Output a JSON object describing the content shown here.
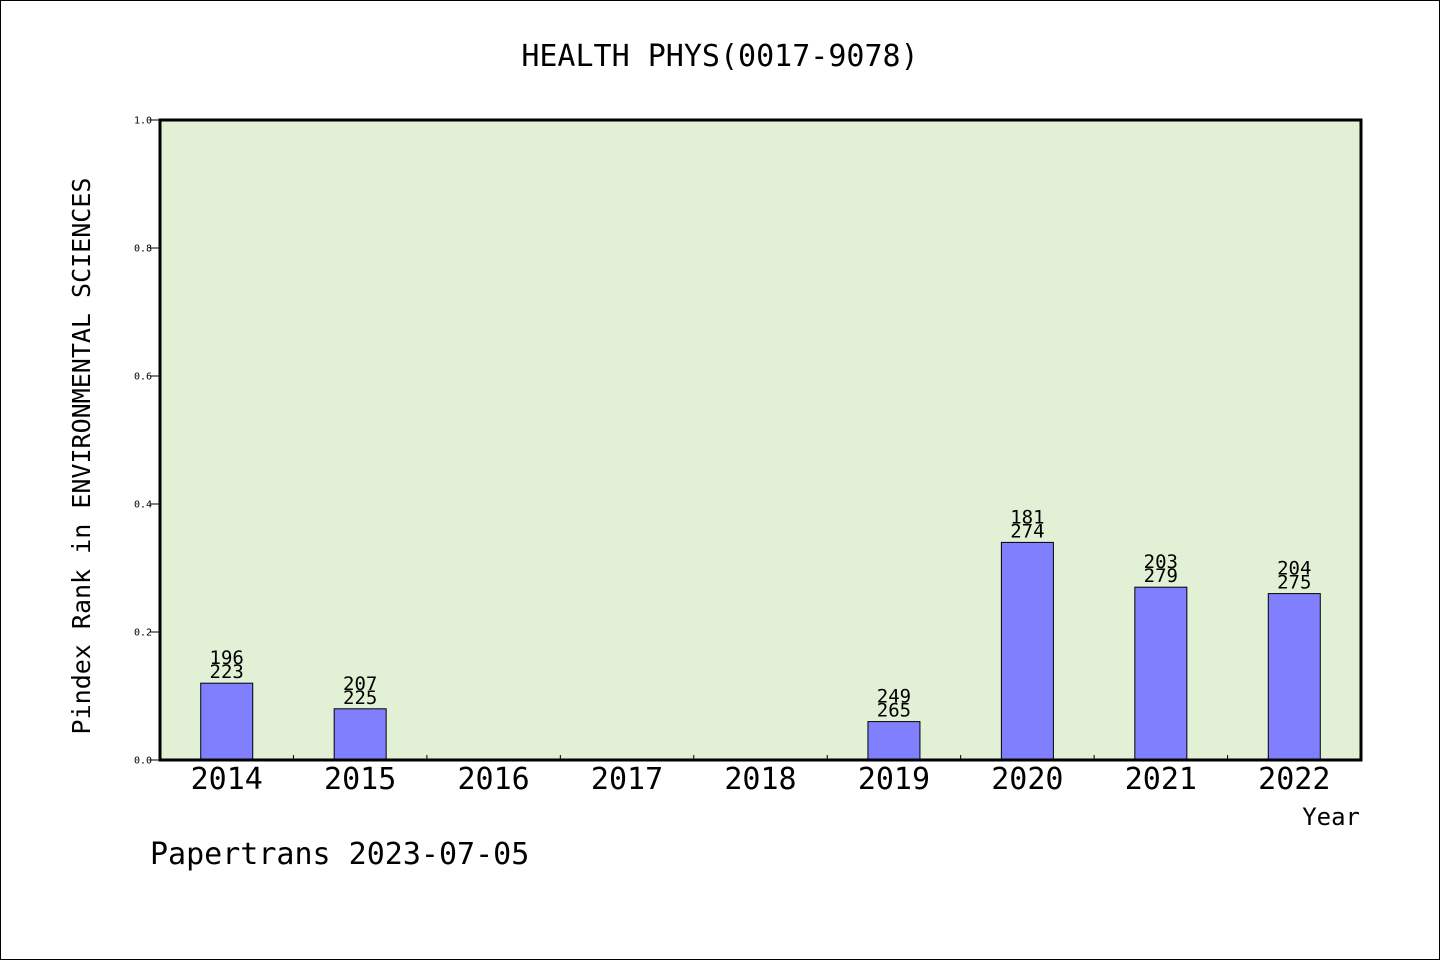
{
  "chart_data": {
    "type": "bar",
    "title": "HEALTH PHYS(0017-9078)",
    "ylabel": "Pindex Rank in ENVIRONMENTAL SCIENCES",
    "xlabel": "Year",
    "ylim": [
      0,
      1.0
    ],
    "yticks": [
      "0.0",
      "0.2",
      "0.4",
      "0.6",
      "0.8",
      "1.0"
    ],
    "categories": [
      "2014",
      "2015",
      "2016",
      "2017",
      "2018",
      "2019",
      "2020",
      "2021",
      "2022"
    ],
    "values": [
      0.12,
      0.08,
      null,
      null,
      null,
      0.06,
      0.34,
      0.27,
      0.26
    ],
    "rank_labels": [
      "196",
      "207",
      "",
      "",
      "",
      "249",
      "181",
      "203",
      "204"
    ],
    "total_labels": [
      "223",
      "225",
      "",
      "",
      "",
      "265",
      "274",
      "279",
      "275"
    ],
    "colors": {
      "plot_bg": "#e2f0d6",
      "bar": "#8080ff",
      "bar_edge": "#000000"
    },
    "grid": false
  },
  "footer": {
    "text": "Papertrans 2023-07-05"
  }
}
